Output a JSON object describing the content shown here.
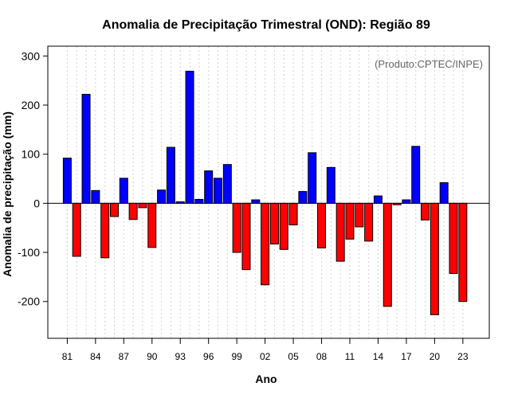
{
  "chart_data": {
    "type": "bar",
    "title": "Anomalia de Precipitação Trimestral (OND): Região 89",
    "xlabel": "Ano",
    "ylabel": "Anomalia de precipitação (mm)",
    "annotation": "(Produto:CPTEC/INPE)",
    "ylim": [
      -275,
      320
    ],
    "yticks": [
      300,
      200,
      100,
      0,
      -100,
      -200
    ],
    "ytick_labels": [
      "300",
      "200",
      "100",
      "0",
      "-100",
      "-200"
    ],
    "grid": "vertical dotted",
    "categories": [
      "1981",
      "1982",
      "1983",
      "1984",
      "1985",
      "1986",
      "1987",
      "1988",
      "1989",
      "1990",
      "1991",
      "1992",
      "1993",
      "1994",
      "1995",
      "1996",
      "1997",
      "1998",
      "1999",
      "2000",
      "2001",
      "2002",
      "2003",
      "2004",
      "2005",
      "2006",
      "2007",
      "2008",
      "2009",
      "2010",
      "2011",
      "2012",
      "2013",
      "2014",
      "2015",
      "2016",
      "2017",
      "2018",
      "2019",
      "2020",
      "2021",
      "2022",
      "2023"
    ],
    "xtick_labels": [
      "81",
      "",
      "",
      "84",
      "",
      "",
      "87",
      "",
      "",
      "90",
      "",
      "",
      "93",
      "",
      "",
      "96",
      "",
      "",
      "99",
      "",
      "",
      "02",
      "",
      "",
      "05",
      "",
      "",
      "08",
      "",
      "",
      "11",
      "",
      "",
      "14",
      "",
      "",
      "17",
      "",
      "",
      "20",
      "",
      "",
      "23"
    ],
    "values": [
      92,
      -108,
      222,
      26,
      -111,
      -27,
      51,
      -33,
      -9,
      -90,
      27,
      114,
      3,
      269,
      8,
      66,
      51,
      79,
      -100,
      -135,
      7,
      -166,
      -83,
      -94,
      -44,
      24,
      103,
      -91,
      73,
      -118,
      -73,
      -48,
      -77,
      15,
      -210,
      -3,
      7,
      116,
      -34,
      -227,
      42,
      -143,
      -200
    ],
    "colors": {
      "positive": "#0000ff",
      "negative": "#ff0000",
      "edge": "#000000",
      "grid": "#d3d3d3",
      "zero_line": "#000000"
    }
  }
}
